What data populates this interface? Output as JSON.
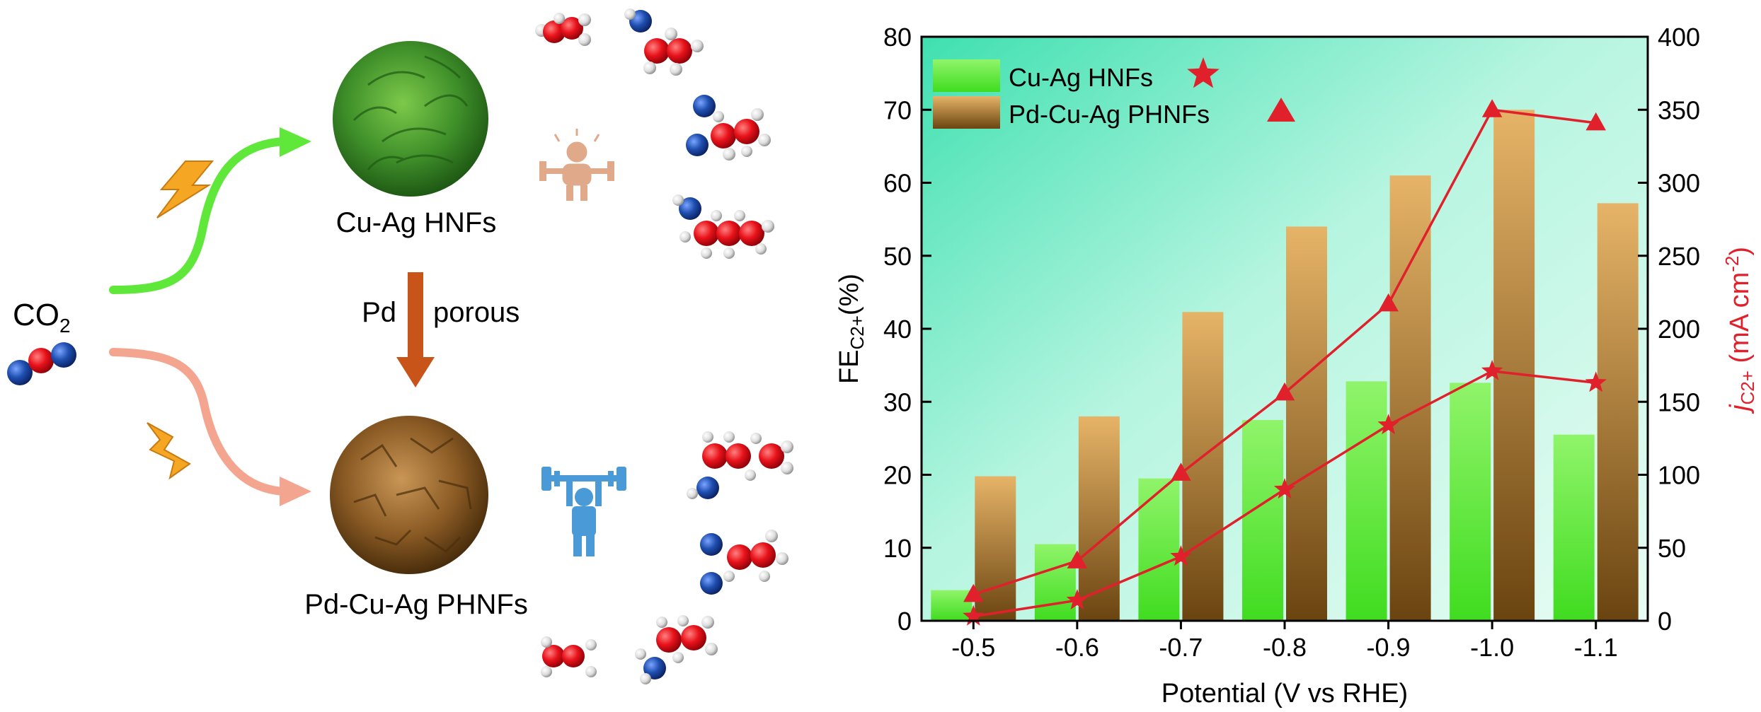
{
  "scheme": {
    "reactant": "CO",
    "reactant_sub": "2",
    "top_material": "Cu-Ag HNFs",
    "bottom_material": "Pd-Cu-Ag PHNFs",
    "mid_left": "Pd",
    "mid_right": "porous",
    "colors": {
      "green_arrow": "#5fe83a",
      "salmon_arrow": "#f4a58f",
      "brown_arrow": "#c8541a",
      "bolt": "#f5a623",
      "oxygen": "#e8121a",
      "carbon": "#1f4fb0",
      "hydrogen": "#e8e8e8",
      "flower_green": "#3f8f2a",
      "flower_brown": "#8a5a24",
      "lifter_weak": "#e0a98a",
      "lifter_strong": "#4a9ad8"
    },
    "icons": [
      "lightning-icon",
      "weak-weightlifter-icon",
      "strong-weightlifter-icon",
      "molecule-icon"
    ]
  },
  "chart_data": {
    "type": "bar",
    "title": "",
    "xlabel": "Potential (V vs RHE)",
    "ylabel_main": "FE",
    "ylabel_sub": "C2+",
    "ylabel_unit": "(%)",
    "y2label_main": "j",
    "y2label_sub": "C2+",
    "y2label_unit": " (mA cm",
    "y2label_sup": "-2",
    "y2label_close": ")",
    "categories": [
      "-0.5",
      "-0.6",
      "-0.7",
      "-0.8",
      "-0.9",
      "-1.0",
      "-1.1"
    ],
    "ylim": [
      0,
      80
    ],
    "y_ticks": [
      0,
      10,
      20,
      30,
      40,
      50,
      60,
      70,
      80
    ],
    "y2lim": [
      0,
      400
    ],
    "y2_ticks": [
      0,
      50,
      100,
      150,
      200,
      250,
      300,
      350,
      400
    ],
    "legend_position": "top-left",
    "series": [
      {
        "name": "Cu-Ag HNFs",
        "kind": "bar",
        "axis": "left",
        "values": [
          4.2,
          10.5,
          19.5,
          27.5,
          32.8,
          32.6,
          25.5
        ],
        "color": "#66ee44"
      },
      {
        "name": "Pd-Cu-Ag PHNFs",
        "kind": "bar",
        "axis": "left",
        "values": [
          19.8,
          28,
          42.3,
          54,
          61,
          70,
          57.2
        ],
        "color": "#d4a058"
      },
      {
        "name": "Cu-Ag HNFs",
        "kind": "line",
        "axis": "right",
        "marker": "star",
        "values": [
          3,
          14,
          44,
          90,
          134,
          171,
          163
        ],
        "color": "#e0202a"
      },
      {
        "name": "Pd-Cu-Ag PHNFs",
        "kind": "line",
        "axis": "right",
        "marker": "triangle",
        "values": [
          18,
          41,
          101,
          156,
          217,
          350,
          341
        ],
        "color": "#e0202a"
      }
    ],
    "colors": {
      "plot_bg_top": "#5ef0c8",
      "plot_bg_mid": "#c8f8ea",
      "marker_red": "#e0202a",
      "right_axis_text": "#e0202a"
    }
  }
}
